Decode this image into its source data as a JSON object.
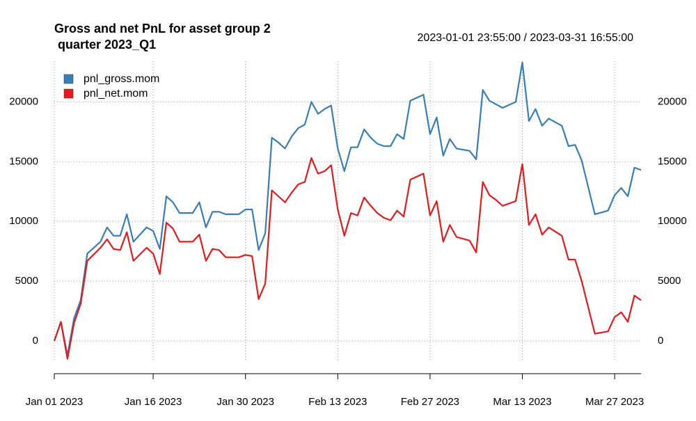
{
  "chart_data": {
    "type": "line",
    "title": [
      "Gross and net PnL for asset group 2",
      " quarter 2023_Q1"
    ],
    "subtitle": "2023-01-01 23:55:00 / 2023-03-31 16:55:00",
    "x": [
      "2023-01-01",
      "2023-01-02",
      "2023-01-03",
      "2023-01-04",
      "2023-01-05",
      "2023-01-06",
      "2023-01-08",
      "2023-01-09",
      "2023-01-10",
      "2023-01-11",
      "2023-01-12",
      "2023-01-13",
      "2023-01-15",
      "2023-01-16",
      "2023-01-17",
      "2023-01-18",
      "2023-01-19",
      "2023-01-20",
      "2023-01-21",
      "2023-01-22",
      "2023-01-23",
      "2023-01-24",
      "2023-01-25",
      "2023-01-26",
      "2023-01-27",
      "2023-01-28",
      "2023-01-29",
      "2023-01-30",
      "2023-01-31",
      "2023-02-01",
      "2023-02-02",
      "2023-02-03",
      "2023-02-04",
      "2023-02-05",
      "2023-02-06",
      "2023-02-07",
      "2023-02-08",
      "2023-02-09",
      "2023-02-10",
      "2023-02-11",
      "2023-02-12",
      "2023-02-13",
      "2023-02-14",
      "2023-02-15",
      "2023-02-16",
      "2023-02-17",
      "2023-02-18",
      "2023-02-19",
      "2023-02-20",
      "2023-02-21",
      "2023-02-22",
      "2023-02-23",
      "2023-02-24",
      "2023-02-26",
      "2023-02-27",
      "2023-02-28",
      "2023-03-01",
      "2023-03-02",
      "2023-03-03",
      "2023-03-05",
      "2023-03-06",
      "2023-03-07",
      "2023-03-08",
      "2023-03-09",
      "2023-03-10",
      "2023-03-12",
      "2023-03-13",
      "2023-03-14",
      "2023-03-15",
      "2023-03-16",
      "2023-03-17",
      "2023-03-19",
      "2023-03-20",
      "2023-03-21",
      "2023-03-22",
      "2023-03-24",
      "2023-03-26",
      "2023-03-27",
      "2023-03-28",
      "2023-03-29",
      "2023-03-30",
      "2023-03-31"
    ],
    "series": [
      {
        "name": "pnl_gross.mom",
        "color": "#377eb8",
        "values": [
          0,
          1600,
          -1200,
          1900,
          3400,
          7300,
          8300,
          9500,
          8800,
          8800,
          10600,
          8300,
          9500,
          9200,
          7700,
          12100,
          11600,
          10700,
          10700,
          10700,
          11600,
          9500,
          10800,
          10800,
          10600,
          10600,
          10600,
          11000,
          11000,
          7600,
          9000,
          17000,
          16600,
          16100,
          17100,
          17800,
          18100,
          20000,
          19000,
          19400,
          19700,
          16100,
          14200,
          16200,
          16200,
          17700,
          17000,
          16500,
          16300,
          16300,
          17300,
          16900,
          20100,
          20600,
          17300,
          18700,
          15500,
          16900,
          16100,
          15900,
          15200,
          21000,
          20100,
          19800,
          19500,
          20000,
          23300,
          18400,
          19400,
          18000,
          18600,
          18000,
          16300,
          16400,
          15100,
          10600,
          10900,
          12200,
          12800,
          12100,
          14500,
          14300
        ]
      },
      {
        "name": "pnl_net.mom",
        "color": "#e41a1c",
        "values": [
          0,
          1600,
          -1500,
          1500,
          3100,
          6700,
          7800,
          8500,
          7700,
          7600,
          9100,
          6700,
          7800,
          7300,
          5600,
          9900,
          9400,
          8300,
          8300,
          8300,
          8900,
          6700,
          7700,
          7600,
          7000,
          7000,
          7000,
          7200,
          7100,
          3500,
          4800,
          12600,
          12100,
          11600,
          12400,
          13100,
          13300,
          15300,
          14000,
          14200,
          14700,
          11000,
          8800,
          10700,
          10500,
          12000,
          11300,
          10700,
          10300,
          10100,
          10900,
          10400,
          13500,
          14000,
          10500,
          11700,
          8300,
          9700,
          8700,
          8400,
          7400,
          13300,
          12200,
          11800,
          11300,
          11700,
          14800,
          9700,
          10600,
          8900,
          9500,
          8800,
          6800,
          6800,
          5000,
          600,
          800,
          2000,
          2400,
          1600,
          3800,
          3400
        ]
      }
    ],
    "xlim": [
      "2023-01-01",
      "2023-03-31"
    ],
    "xticks": [
      {
        "value": "2023-01-01",
        "label": "Jan 01 2023"
      },
      {
        "value": "2023-01-16",
        "label": "Jan 16 2023"
      },
      {
        "value": "2023-01-30",
        "label": "Jan 30 2023"
      },
      {
        "value": "2023-02-13",
        "label": "Feb 13 2023"
      },
      {
        "value": "2023-02-27",
        "label": "Feb 27 2023"
      },
      {
        "value": "2023-03-13",
        "label": "Mar 13 2023"
      },
      {
        "value": "2023-03-27",
        "label": "Mar 27 2023"
      }
    ],
    "ylim": [
      -1750,
      23400
    ],
    "yticks": [
      0,
      5000,
      10000,
      15000,
      20000
    ],
    "grid": true,
    "legend": "top-left"
  }
}
